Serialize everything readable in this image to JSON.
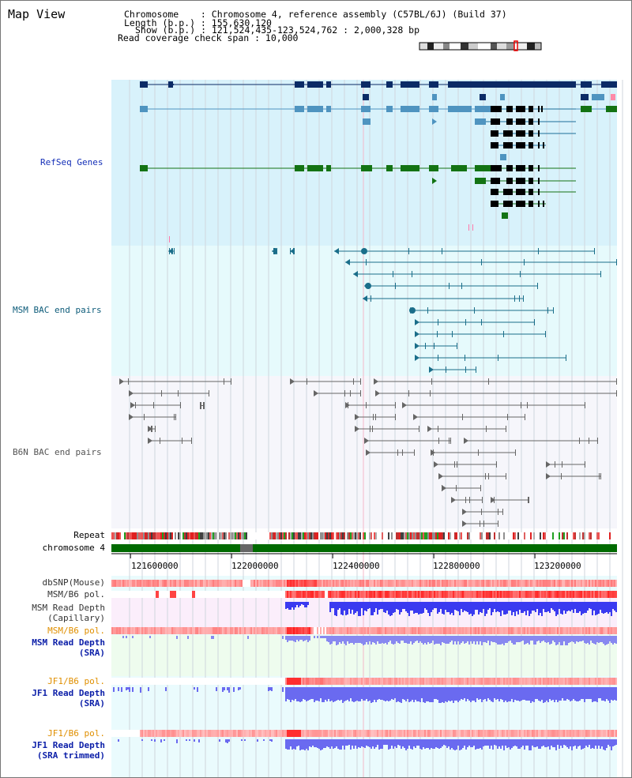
{
  "view": {
    "title": "Map View"
  },
  "header": {
    "chromosome": "Chromosome    : Chromosome 4, reference assembly (C57BL/6J) (Build 37)",
    "length": "Length (b.p.) : 155,630,120",
    "show": "Show (b.p.) : 121,524,435-123,524,762 : 2,000,328 bp",
    "coverage": "Read coverage check span : 10,000"
  },
  "tracks": {
    "refseq": "RefSeq Genes",
    "msm_bac": "MSM BAC end pairs",
    "b6n_bac": "B6N BAC end pairs",
    "repeat": "Repeat",
    "chromosome": "chromosome 4",
    "dbsnp": "dbSNP(Mouse)",
    "msm_pol_1": "MSM/B6 pol.",
    "msm_depth_cap_1": "MSM Read Depth",
    "msm_depth_cap_2": "(Capillary)",
    "msm_pol_2": "MSM/B6 pol.",
    "msm_depth_sra_1": "MSM Read Depth",
    "msm_depth_sra_2": "(SRA)",
    "jf1_pol_1": "JF1/B6 pol.",
    "jf1_depth_sra_1": "JF1 Read Depth",
    "jf1_depth_sra_2": "(SRA)",
    "jf1_pol_2": "JF1/B6 pol.",
    "jf1_depth_trim_1": "JF1 Read Depth",
    "jf1_depth_trim_2": "(SRA trimmed)"
  },
  "axis": {
    "ticks": [
      {
        "label": "121600000",
        "value": 121600000
      },
      {
        "label": "122000000",
        "value": 122000000
      },
      {
        "label": "122400000",
        "value": 122400000
      },
      {
        "label": "122800000",
        "value": 122800000
      },
      {
        "label": "123200000",
        "value": 123200000
      }
    ],
    "range": [
      121524435,
      123524762
    ]
  },
  "colors": {
    "refseq_bg": "#d8f2fb",
    "msm_bg": "#e6fafc",
    "b6n_bg": "#f6f6fb",
    "gene_dark": "#0b2b66",
    "gene_blue": "#4f94c0",
    "gene_green": "#137313",
    "gene_black": "#000000",
    "msm_pair": "#1a6e8a",
    "b6n_pair": "#666666",
    "track_blue": "#0b1ea8",
    "track_orange": "#e08f00",
    "chromosome_green": "#006a00",
    "depth_blue": "#3a3af0"
  }
}
